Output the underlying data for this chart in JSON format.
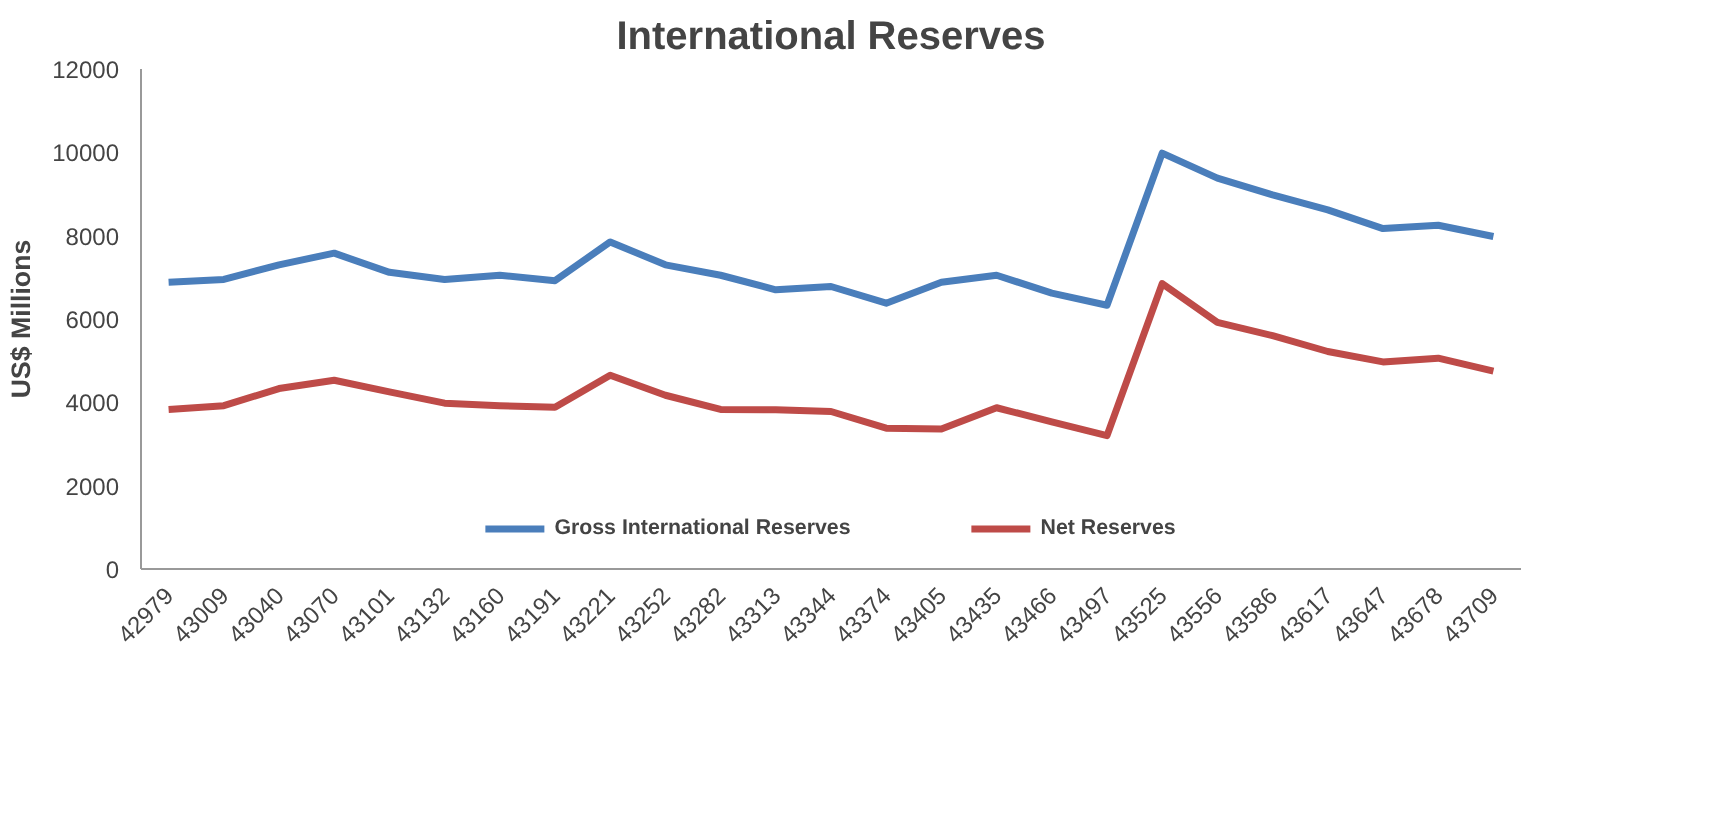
{
  "chart_data": {
    "type": "line",
    "title": "International Reserves",
    "ylabel": "US$ Millions",
    "categories": [
      "42979",
      "43009",
      "43040",
      "43070",
      "43101",
      "43132",
      "43160",
      "43191",
      "43221",
      "43252",
      "43282",
      "43313",
      "43344",
      "43374",
      "43405",
      "43435",
      "43466",
      "43497",
      "43525",
      "43556",
      "43586",
      "43617",
      "43647",
      "43678",
      "43709"
    ],
    "series": [
      {
        "name": "Gross International Reserves",
        "color": "#4a7ebb",
        "values": [
          6880,
          6950,
          7300,
          7580,
          7120,
          6950,
          7050,
          6920,
          7850,
          7300,
          7050,
          6700,
          6780,
          6380,
          6880,
          7050,
          6620,
          6330,
          9980,
          9380,
          8980,
          8620,
          8170,
          8250,
          7980
        ]
      },
      {
        "name": "Net Reserves",
        "color": "#be4b48",
        "values": [
          3830,
          3920,
          4330,
          4530,
          4250,
          3980,
          3920,
          3880,
          4650,
          4170,
          3830,
          3820,
          3780,
          3380,
          3360,
          3870,
          3530,
          3200,
          6850,
          5920,
          5600,
          5220,
          4970,
          5060,
          4750
        ]
      }
    ],
    "ylim": [
      0,
      12000
    ],
    "yticks": [
      0,
      2000,
      4000,
      6000,
      8000,
      10000,
      12000
    ],
    "grid": false,
    "legend": "bottom",
    "marker": "none",
    "line_style": "solid"
  }
}
